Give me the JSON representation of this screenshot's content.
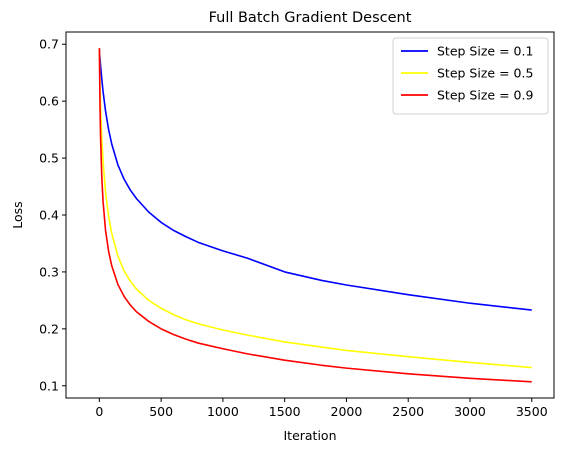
{
  "chart_data": {
    "type": "line",
    "title": "Full Batch Gradient Descent",
    "xlabel": "Iteration",
    "ylabel": "Loss",
    "xlim": [
      -270,
      3680
    ],
    "ylim": [
      0.0785,
      0.7215
    ],
    "xticks": [
      0,
      500,
      1000,
      1500,
      2000,
      2500,
      3000,
      3500
    ],
    "yticks": [
      0.1,
      0.2,
      0.3,
      0.4,
      0.5,
      0.6,
      0.7
    ],
    "ytick_labels": [
      "0.1",
      "0.2",
      "0.3",
      "0.4",
      "0.5",
      "0.6",
      "0.7"
    ],
    "grid": false,
    "legend_position": "top-right",
    "series": [
      {
        "name": "Step Size = 0.1",
        "color": "#0000ff",
        "x": [
          0,
          5,
          10,
          20,
          30,
          50,
          75,
          100,
          150,
          200,
          250,
          300,
          400,
          500,
          600,
          700,
          800,
          1000,
          1200,
          1500,
          1800,
          2000,
          2500,
          3000,
          3500
        ],
        "y": [
          0.693,
          0.676,
          0.662,
          0.638,
          0.617,
          0.583,
          0.55,
          0.525,
          0.488,
          0.463,
          0.444,
          0.429,
          0.405,
          0.387,
          0.373,
          0.362,
          0.352,
          0.337,
          0.324,
          0.3,
          0.285,
          0.277,
          0.26,
          0.245,
          0.233
        ]
      },
      {
        "name": "Step Size = 0.5",
        "color": "#ffff00",
        "x": [
          0,
          5,
          10,
          20,
          30,
          50,
          75,
          100,
          150,
          200,
          250,
          300,
          400,
          500,
          600,
          700,
          800,
          1000,
          1200,
          1500,
          1800,
          2000,
          2500,
          3000,
          3500
        ],
        "y": [
          0.693,
          0.633,
          0.59,
          0.532,
          0.494,
          0.44,
          0.398,
          0.368,
          0.328,
          0.302,
          0.284,
          0.27,
          0.25,
          0.236,
          0.225,
          0.216,
          0.209,
          0.198,
          0.189,
          0.177,
          0.168,
          0.162,
          0.151,
          0.141,
          0.132
        ]
      },
      {
        "name": "Step Size = 0.9",
        "color": "#ff0000",
        "x": [
          0,
          5,
          10,
          20,
          30,
          50,
          75,
          100,
          150,
          200,
          250,
          300,
          400,
          500,
          600,
          700,
          800,
          1000,
          1200,
          1500,
          1800,
          2000,
          2500,
          3000,
          3500
        ],
        "y": [
          0.693,
          0.595,
          0.535,
          0.465,
          0.424,
          0.373,
          0.336,
          0.311,
          0.278,
          0.257,
          0.242,
          0.23,
          0.213,
          0.2,
          0.19,
          0.182,
          0.175,
          0.165,
          0.156,
          0.145,
          0.136,
          0.131,
          0.121,
          0.113,
          0.107
        ]
      }
    ]
  }
}
